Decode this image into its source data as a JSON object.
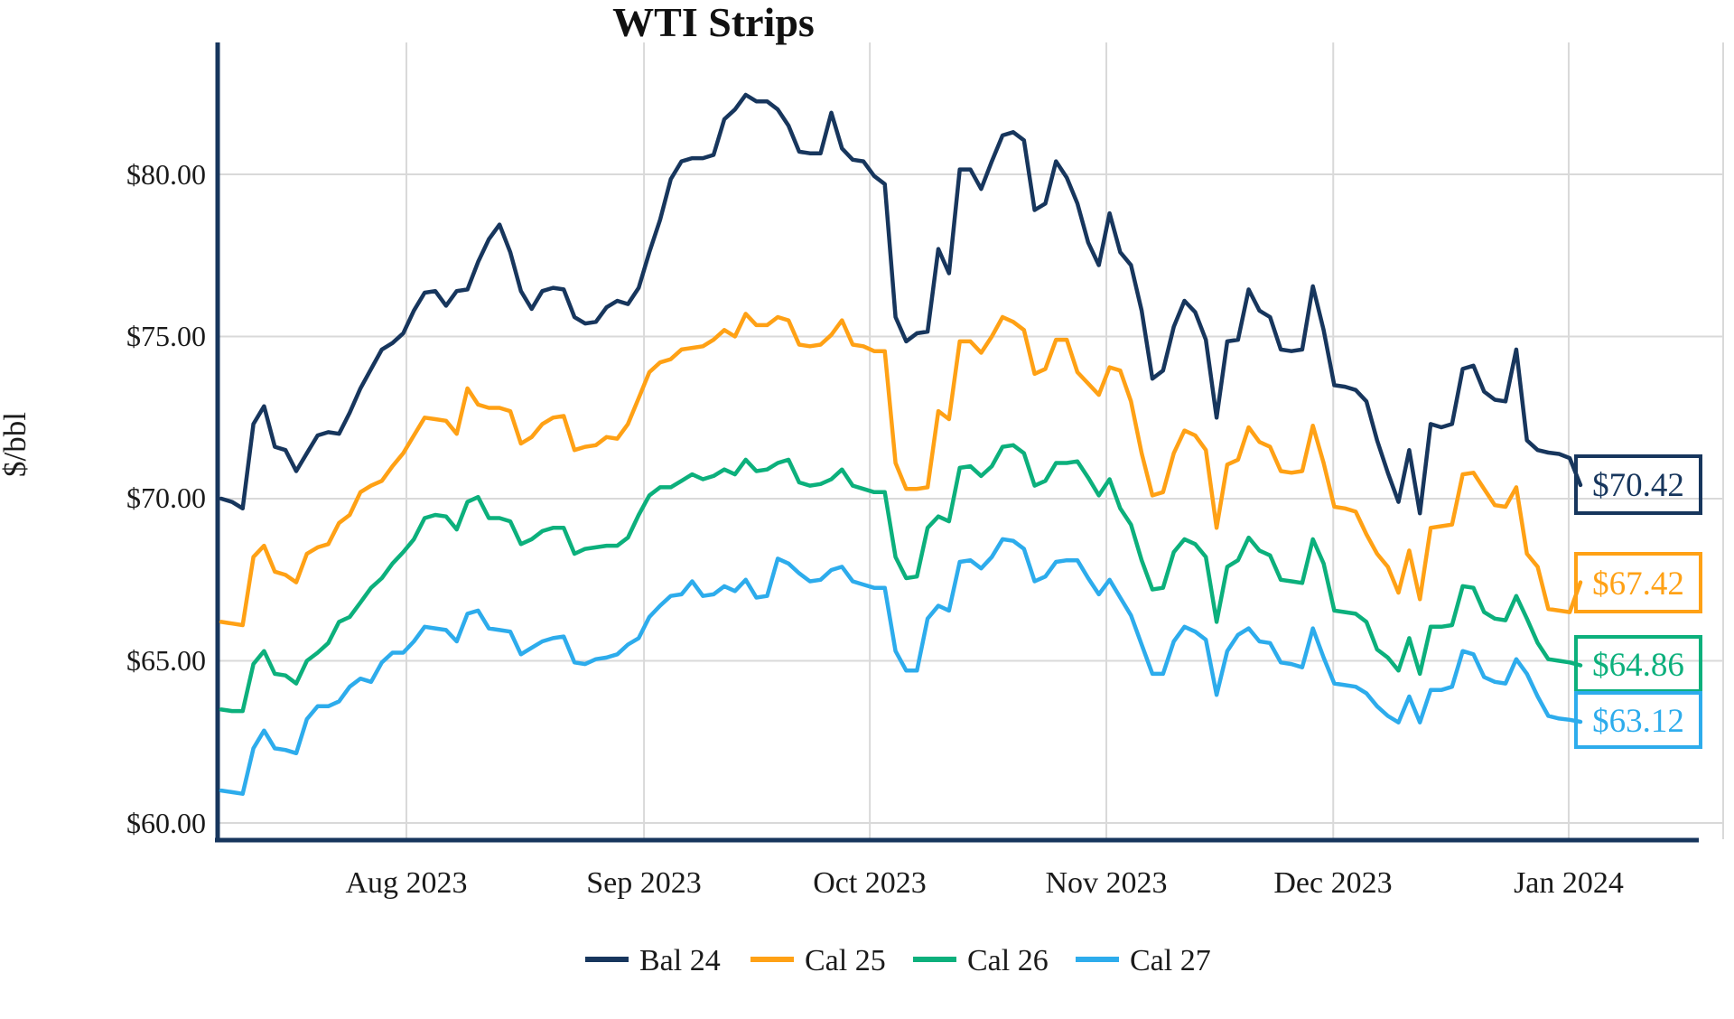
{
  "chart_data": {
    "type": "line",
    "title": "WTI Strips",
    "ylabel": "$/bbl",
    "grid": true,
    "legend_position": "bottom-center",
    "y_ticks": [
      "$80.00",
      "$75.00",
      "$70.00",
      "$65.00",
      "$60.00"
    ],
    "y_tick_values": [
      80,
      75,
      70,
      65,
      60
    ],
    "ylim": [
      59.5,
      84.1
    ],
    "x_ticks": [
      "Aug 2023",
      "Sep 2023",
      "Oct 2023",
      "Nov 2023",
      "Dec 2023",
      "Jan 2024"
    ],
    "x_tick_days": [
      17.3,
      39.5,
      60.6,
      82.7,
      103.9,
      125.9
    ],
    "colors": {
      "axis": "#17365d",
      "gridline": "#d9d9d9"
    },
    "series": [
      {
        "name": "Bal 24",
        "color": "#17365d",
        "end_label": "$70.42",
        "end_value": 70.42,
        "values": [
          70.0,
          69.9,
          69.7,
          72.3,
          72.85,
          71.6,
          71.5,
          70.85,
          71.4,
          71.95,
          72.05,
          72.0,
          72.65,
          73.4,
          74.0,
          74.6,
          74.8,
          75.1,
          75.8,
          76.35,
          76.4,
          75.95,
          76.4,
          76.45,
          77.3,
          78.0,
          78.45,
          77.6,
          76.4,
          75.85,
          76.4,
          76.5,
          76.45,
          75.6,
          75.4,
          75.45,
          75.9,
          76.1,
          76.0,
          76.5,
          77.6,
          78.6,
          79.85,
          80.4,
          80.5,
          80.5,
          80.6,
          81.7,
          82.0,
          82.45,
          82.25,
          82.25,
          82.0,
          81.5,
          80.7,
          80.65,
          80.65,
          81.9,
          80.8,
          80.45,
          80.4,
          79.95,
          79.7,
          75.6,
          74.85,
          75.1,
          75.15,
          77.7,
          76.95,
          80.15,
          80.15,
          79.55,
          80.4,
          81.2,
          81.3,
          81.05,
          78.9,
          79.1,
          80.4,
          79.9,
          79.1,
          77.9,
          77.2,
          78.8,
          77.6,
          77.2,
          75.8,
          73.7,
          73.95,
          75.3,
          76.1,
          75.75,
          74.9,
          72.5,
          74.85,
          74.9,
          76.45,
          75.8,
          75.6,
          74.6,
          74.55,
          74.6,
          76.55,
          75.2,
          73.5,
          73.45,
          73.35,
          73.0,
          71.8,
          70.8,
          69.9,
          71.5,
          69.55,
          72.3,
          72.2,
          72.3,
          74.0,
          74.1,
          73.3,
          73.05,
          73.0,
          74.6,
          71.8,
          71.5,
          71.42,
          71.38,
          71.25,
          70.42
        ]
      },
      {
        "name": "Cal 25",
        "color": "#ffa115",
        "end_label": "$67.42",
        "end_value": 67.42,
        "values": [
          66.2,
          66.15,
          66.1,
          68.2,
          68.55,
          67.75,
          67.65,
          67.42,
          68.3,
          68.5,
          68.6,
          69.25,
          69.5,
          70.2,
          70.4,
          70.55,
          71.0,
          71.4,
          71.95,
          72.5,
          72.45,
          72.4,
          72.0,
          73.4,
          72.9,
          72.8,
          72.8,
          72.7,
          71.7,
          71.9,
          72.3,
          72.5,
          72.55,
          71.5,
          71.6,
          71.65,
          71.9,
          71.85,
          72.3,
          73.1,
          73.9,
          74.2,
          74.3,
          74.6,
          74.65,
          74.7,
          74.9,
          75.2,
          75.0,
          75.7,
          75.35,
          75.35,
          75.6,
          75.5,
          74.75,
          74.7,
          74.75,
          75.05,
          75.5,
          74.75,
          74.7,
          74.55,
          74.55,
          71.1,
          70.3,
          70.3,
          70.35,
          72.7,
          72.45,
          74.85,
          74.85,
          74.5,
          75.0,
          75.6,
          75.45,
          75.2,
          73.85,
          74.0,
          74.9,
          74.9,
          73.9,
          73.55,
          73.2,
          74.05,
          73.95,
          73.0,
          71.4,
          70.1,
          70.2,
          71.4,
          72.1,
          71.95,
          71.5,
          69.1,
          71.05,
          71.2,
          72.2,
          71.75,
          71.6,
          70.85,
          70.8,
          70.85,
          72.25,
          71.1,
          69.75,
          69.7,
          69.6,
          68.9,
          68.3,
          67.9,
          67.1,
          68.4,
          66.9,
          69.1,
          69.15,
          69.2,
          70.75,
          70.8,
          70.3,
          69.8,
          69.75,
          70.35,
          68.3,
          67.9,
          66.6,
          66.55,
          66.5,
          67.42
        ]
      },
      {
        "name": "Cal 26",
        "color": "#0cb07c",
        "end_label": "$64.86",
        "end_value": 64.86,
        "values": [
          63.5,
          63.45,
          63.45,
          64.9,
          65.3,
          64.6,
          64.55,
          64.3,
          65.0,
          65.25,
          65.55,
          66.2,
          66.35,
          66.8,
          67.25,
          67.55,
          68.0,
          68.35,
          68.75,
          69.4,
          69.5,
          69.45,
          69.05,
          69.9,
          70.05,
          69.4,
          69.4,
          69.3,
          68.6,
          68.75,
          69.0,
          69.1,
          69.1,
          68.3,
          68.45,
          68.5,
          68.55,
          68.55,
          68.8,
          69.5,
          70.1,
          70.35,
          70.35,
          70.55,
          70.75,
          70.6,
          70.7,
          70.9,
          70.75,
          71.2,
          70.85,
          70.9,
          71.1,
          71.2,
          70.5,
          70.4,
          70.45,
          70.6,
          70.9,
          70.4,
          70.3,
          70.2,
          70.2,
          68.2,
          67.55,
          67.6,
          69.1,
          69.45,
          69.3,
          70.95,
          71.0,
          70.7,
          71.0,
          71.6,
          71.65,
          71.4,
          70.4,
          70.55,
          71.1,
          71.1,
          71.15,
          70.65,
          70.1,
          70.6,
          69.7,
          69.2,
          68.1,
          67.2,
          67.25,
          68.35,
          68.75,
          68.6,
          68.2,
          66.2,
          67.9,
          68.1,
          68.8,
          68.4,
          68.25,
          67.5,
          67.45,
          67.4,
          68.75,
          68.0,
          66.55,
          66.5,
          66.45,
          66.2,
          65.35,
          65.1,
          64.7,
          65.7,
          64.6,
          66.05,
          66.05,
          66.1,
          67.3,
          67.25,
          66.5,
          66.3,
          66.25,
          67.0,
          66.3,
          65.55,
          65.05,
          65.0,
          64.95,
          64.86
        ]
      },
      {
        "name": "Cal 27",
        "color": "#2dacec",
        "end_label": "$63.12",
        "end_value": 63.12,
        "values": [
          61.0,
          60.95,
          60.9,
          62.3,
          62.85,
          62.3,
          62.25,
          62.15,
          63.2,
          63.6,
          63.6,
          63.75,
          64.2,
          64.45,
          64.35,
          64.95,
          65.25,
          65.25,
          65.6,
          66.05,
          66.0,
          65.95,
          65.6,
          66.45,
          66.55,
          66.0,
          65.95,
          65.9,
          65.2,
          65.4,
          65.6,
          65.7,
          65.75,
          64.95,
          64.9,
          65.05,
          65.1,
          65.2,
          65.5,
          65.7,
          66.35,
          66.7,
          67.0,
          67.05,
          67.45,
          67.0,
          67.05,
          67.3,
          67.15,
          67.5,
          66.95,
          67.0,
          68.15,
          68.0,
          67.7,
          67.45,
          67.5,
          67.8,
          67.9,
          67.45,
          67.35,
          67.25,
          67.25,
          65.3,
          64.7,
          64.7,
          66.3,
          66.7,
          66.55,
          68.05,
          68.1,
          67.85,
          68.2,
          68.75,
          68.7,
          68.45,
          67.45,
          67.6,
          68.05,
          68.1,
          68.1,
          67.55,
          67.05,
          67.5,
          66.95,
          66.4,
          65.5,
          64.6,
          64.6,
          65.6,
          66.05,
          65.9,
          65.65,
          63.95,
          65.3,
          65.8,
          66.0,
          65.6,
          65.55,
          64.95,
          64.9,
          64.8,
          66.0,
          65.1,
          64.3,
          64.25,
          64.2,
          64.0,
          63.6,
          63.3,
          63.1,
          63.9,
          63.1,
          64.1,
          64.1,
          64.2,
          65.3,
          65.2,
          64.5,
          64.35,
          64.3,
          65.05,
          64.6,
          63.9,
          63.3,
          63.22,
          63.18,
          63.12
        ]
      }
    ]
  }
}
